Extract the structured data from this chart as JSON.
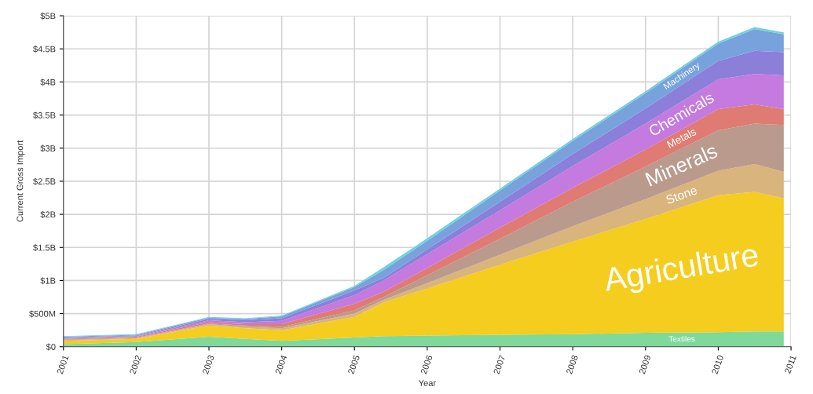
{
  "chart_data": {
    "type": "area",
    "stacked": true,
    "xlabel": "Year",
    "ylabel": "Current Gross Import",
    "x": [
      2001,
      2002,
      2003,
      2003.5,
      2004,
      2005,
      2005.4,
      2006,
      2007,
      2008,
      2009,
      2010,
      2010.5,
      2010.9
    ],
    "series": [
      {
        "name": "Textiles",
        "color": "#7fd99b",
        "values": [
          40000000,
          70000000,
          150000000,
          120000000,
          90000000,
          140000000,
          160000000,
          170000000,
          180000000,
          190000000,
          210000000,
          220000000,
          230000000,
          230000000
        ]
      },
      {
        "name": "Agriculture",
        "color": "#f4cd1f",
        "values": [
          50000000,
          50000000,
          170000000,
          160000000,
          160000000,
          310000000,
          510000000,
          710000000,
          1060000000,
          1400000000,
          1720000000,
          2070000000,
          2110000000,
          2010000000
        ]
      },
      {
        "name": "Stone",
        "color": "#d9b47c",
        "values": [
          10000000,
          10000000,
          20000000,
          20000000,
          30000000,
          50000000,
          40000000,
          80000000,
          150000000,
          230000000,
          300000000,
          370000000,
          420000000,
          400000000
        ]
      },
      {
        "name": "Minerals",
        "color": "#b99a8c",
        "values": [
          10000000,
          10000000,
          10000000,
          20000000,
          20000000,
          50000000,
          40000000,
          120000000,
          240000000,
          370000000,
          490000000,
          610000000,
          610000000,
          710000000
        ]
      },
      {
        "name": "Metals",
        "color": "#df7b72",
        "values": [
          10000000,
          10000000,
          20000000,
          20000000,
          40000000,
          100000000,
          80000000,
          110000000,
          170000000,
          210000000,
          260000000,
          320000000,
          290000000,
          240000000
        ]
      },
      {
        "name": "Chemicals",
        "color": "#c47ade",
        "values": [
          10000000,
          10000000,
          30000000,
          30000000,
          50000000,
          130000000,
          170000000,
          210000000,
          260000000,
          330000000,
          390000000,
          450000000,
          460000000,
          510000000
        ]
      },
      {
        "color": "#8b7fda",
        "values": [
          10000000,
          10000000,
          20000000,
          30000000,
          40000000,
          70000000,
          40000000,
          70000000,
          130000000,
          180000000,
          230000000,
          280000000,
          350000000,
          350000000
        ]
      },
      {
        "name": "Machinery",
        "color": "#78a2dc",
        "values": [
          10000000,
          10000000,
          20000000,
          20000000,
          30000000,
          50000000,
          120000000,
          130000000,
          170000000,
          200000000,
          230000000,
          260000000,
          330000000,
          270000000
        ]
      },
      {
        "color": "#6ed3da",
        "values": [
          10000000,
          10000000,
          10000000,
          10000000,
          10000000,
          20000000,
          40000000,
          40000000,
          30000000,
          30000000,
          30000000,
          30000000,
          30000000,
          30000000
        ]
      }
    ],
    "xlim": [
      2001,
      2011
    ],
    "xticks": [
      2001,
      2002,
      2003,
      2004,
      2005,
      2006,
      2007,
      2008,
      2009,
      2010,
      2011
    ],
    "ylim": [
      0,
      5000000000
    ],
    "yticks": [
      {
        "value": 0,
        "label": "$0"
      },
      {
        "value": 500000000,
        "label": "$500M"
      },
      {
        "value": 1000000000,
        "label": "$1B"
      },
      {
        "value": 1500000000,
        "label": "$1.5B"
      },
      {
        "value": 2000000000,
        "label": "$2B"
      },
      {
        "value": 2500000000,
        "label": "$2.5B"
      },
      {
        "value": 3000000000,
        "label": "$3B"
      },
      {
        "value": 3500000000,
        "label": "$3.5B"
      },
      {
        "value": 4000000000,
        "label": "$4B"
      },
      {
        "value": 4500000000,
        "label": "$4.5B"
      },
      {
        "value": 5000000000,
        "label": "$5B"
      }
    ],
    "grid": true
  }
}
